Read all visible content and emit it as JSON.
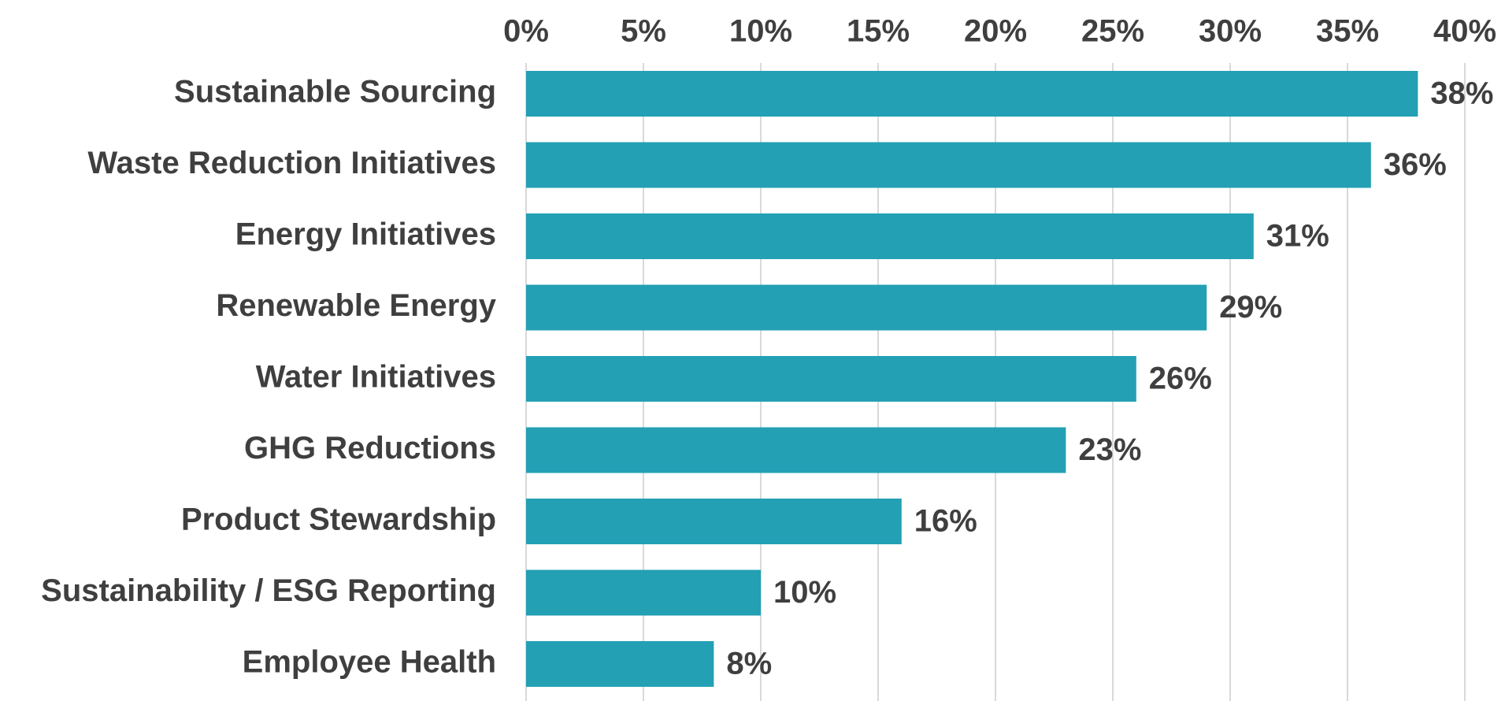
{
  "chart_data": {
    "type": "bar",
    "orientation": "horizontal",
    "title": "",
    "xlabel": "",
    "ylabel": "",
    "categories": [
      "Sustainable Sourcing",
      "Waste Reduction Initiatives",
      "Energy Initiatives",
      "Renewable Energy",
      "Water Initiatives",
      "GHG Reductions",
      "Product Stewardship",
      "Sustainability / ESG Reporting",
      "Employee Health"
    ],
    "values": [
      38,
      36,
      31,
      29,
      26,
      23,
      16,
      10,
      8
    ],
    "data_labels": [
      "38%",
      "36%",
      "31%",
      "29%",
      "26%",
      "23%",
      "16%",
      "10%",
      "8%"
    ],
    "xlim": [
      0,
      40
    ],
    "x_ticks": [
      0,
      5,
      10,
      15,
      20,
      25,
      30,
      35,
      40
    ],
    "x_tick_labels": [
      "0%",
      "5%",
      "10%",
      "15%",
      "20%",
      "25%",
      "30%",
      "35%",
      "40%"
    ],
    "x_axis_position": "top",
    "grid": true,
    "legend": "none",
    "colors": {
      "bar": "#23a0b4",
      "text": "#3f3f3f",
      "grid": "#d9d9d9"
    }
  }
}
